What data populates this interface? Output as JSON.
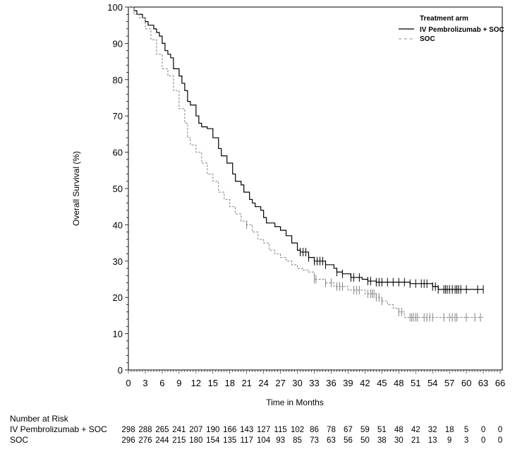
{
  "chart_data": {
    "type": "line",
    "subtype": "kaplan-meier",
    "xlabel": "Time in Months",
    "ylabel": "Overall Survival (%)",
    "xlim": [
      0,
      66
    ],
    "ylim": [
      0,
      100
    ],
    "xticks": [
      0,
      3,
      6,
      9,
      12,
      15,
      18,
      21,
      24,
      27,
      30,
      33,
      36,
      39,
      42,
      45,
      48,
      51,
      54,
      57,
      60,
      63,
      66
    ],
    "yticks": [
      0,
      10,
      20,
      30,
      40,
      50,
      60,
      70,
      80,
      90,
      100
    ],
    "grid": false,
    "legend": {
      "title": "Treatment arm",
      "position": "top-right"
    },
    "series": [
      {
        "name": "IV Pembrolizumab + SOC",
        "color": "#000000",
        "style": "solid",
        "steps": [
          [
            0,
            100
          ],
          [
            1,
            99
          ],
          [
            1.5,
            98
          ],
          [
            2.5,
            97
          ],
          [
            3,
            96
          ],
          [
            3.5,
            95
          ],
          [
            4.5,
            94
          ],
          [
            5,
            93
          ],
          [
            5.5,
            92
          ],
          [
            6,
            90
          ],
          [
            6.5,
            88
          ],
          [
            7,
            87
          ],
          [
            7.5,
            86
          ],
          [
            8,
            83
          ],
          [
            9,
            81
          ],
          [
            9.5,
            79
          ],
          [
            10,
            77
          ],
          [
            10.5,
            74
          ],
          [
            11,
            73
          ],
          [
            12,
            70
          ],
          [
            12.5,
            68
          ],
          [
            13,
            67
          ],
          [
            14,
            66.5
          ],
          [
            15,
            64
          ],
          [
            16,
            61
          ],
          [
            16.5,
            59
          ],
          [
            17.5,
            57
          ],
          [
            18.5,
            54
          ],
          [
            19,
            52
          ],
          [
            20,
            51
          ],
          [
            20.5,
            49
          ],
          [
            21.5,
            47
          ],
          [
            22,
            46
          ],
          [
            22.5,
            45
          ],
          [
            23.5,
            44
          ],
          [
            24,
            42
          ],
          [
            24.5,
            40.5
          ],
          [
            26,
            39.5
          ],
          [
            27,
            38.5
          ],
          [
            28,
            37
          ],
          [
            29,
            35
          ],
          [
            30,
            33
          ],
          [
            30.5,
            32.5
          ],
          [
            32,
            31
          ],
          [
            33,
            30
          ],
          [
            35,
            29
          ],
          [
            36.5,
            28
          ],
          [
            37,
            27
          ],
          [
            38,
            26.5
          ],
          [
            39.5,
            25.5
          ],
          [
            41.5,
            25
          ],
          [
            42.5,
            24.5
          ],
          [
            44,
            24.2
          ],
          [
            50,
            23.8
          ],
          [
            54,
            23
          ],
          [
            55,
            22.2
          ],
          [
            63,
            22.2
          ]
        ],
        "censored": [
          30.5,
          31,
          31.5,
          32,
          33,
          33.5,
          34,
          34.5,
          35,
          37,
          38,
          39.5,
          40,
          41,
          42.5,
          43,
          44,
          44.5,
          45,
          46,
          47,
          48,
          49,
          50,
          51,
          52,
          52.5,
          53,
          54,
          54.5,
          55,
          56,
          56.3,
          56.6,
          57,
          57.5,
          58,
          58.3,
          58.6,
          59,
          60,
          62,
          63
        ]
      },
      {
        "name": "SOC",
        "color": "#808080",
        "style": "dashed",
        "steps": [
          [
            0,
            100
          ],
          [
            1,
            98
          ],
          [
            2,
            97
          ],
          [
            3,
            94
          ],
          [
            4,
            91
          ],
          [
            5,
            87
          ],
          [
            6,
            83
          ],
          [
            7,
            81
          ],
          [
            8,
            77
          ],
          [
            9,
            72
          ],
          [
            10,
            68
          ],
          [
            10.5,
            64
          ],
          [
            11,
            62
          ],
          [
            12,
            60
          ],
          [
            13,
            57
          ],
          [
            14,
            54
          ],
          [
            15,
            52
          ],
          [
            16,
            49
          ],
          [
            17,
            47
          ],
          [
            18,
            45
          ],
          [
            19,
            43
          ],
          [
            20,
            41
          ],
          [
            21,
            40
          ],
          [
            22,
            38
          ],
          [
            23,
            36
          ],
          [
            24,
            35
          ],
          [
            25,
            33
          ],
          [
            26,
            32
          ],
          [
            27,
            31
          ],
          [
            28,
            30
          ],
          [
            29,
            29
          ],
          [
            30,
            28
          ],
          [
            31,
            27.5
          ],
          [
            32,
            27
          ],
          [
            33,
            25
          ],
          [
            35,
            24
          ],
          [
            36.5,
            23
          ],
          [
            39,
            22
          ],
          [
            42,
            21
          ],
          [
            44,
            20
          ],
          [
            45,
            19
          ],
          [
            46,
            18
          ],
          [
            47,
            17
          ],
          [
            48,
            16
          ],
          [
            49,
            14.5
          ],
          [
            63,
            14.5
          ]
        ],
        "censored": [
          21,
          33,
          33.3,
          35,
          36,
          37,
          37.5,
          38,
          40,
          40.5,
          41,
          42.5,
          43,
          43.3,
          43.6,
          44,
          44.5,
          45,
          48,
          48.5,
          50,
          50.3,
          50.6,
          51,
          51.3,
          52.5,
          53,
          53.5,
          54,
          56,
          57,
          57.5,
          58,
          58.3,
          60,
          61.5,
          62.5
        ]
      }
    ]
  },
  "risk_table": {
    "title": "Number at Risk",
    "rows": [
      {
        "label": "IV Pembrolizumab + SOC",
        "values": [
          298,
          288,
          265,
          241,
          207,
          190,
          166,
          143,
          127,
          115,
          102,
          86,
          78,
          67,
          59,
          51,
          48,
          42,
          32,
          18,
          5,
          0,
          0
        ]
      },
      {
        "label": "SOC",
        "values": [
          296,
          276,
          244,
          215,
          180,
          154,
          135,
          117,
          104,
          93,
          85,
          73,
          63,
          56,
          50,
          38,
          30,
          21,
          13,
          9,
          3,
          0,
          0
        ]
      }
    ]
  }
}
